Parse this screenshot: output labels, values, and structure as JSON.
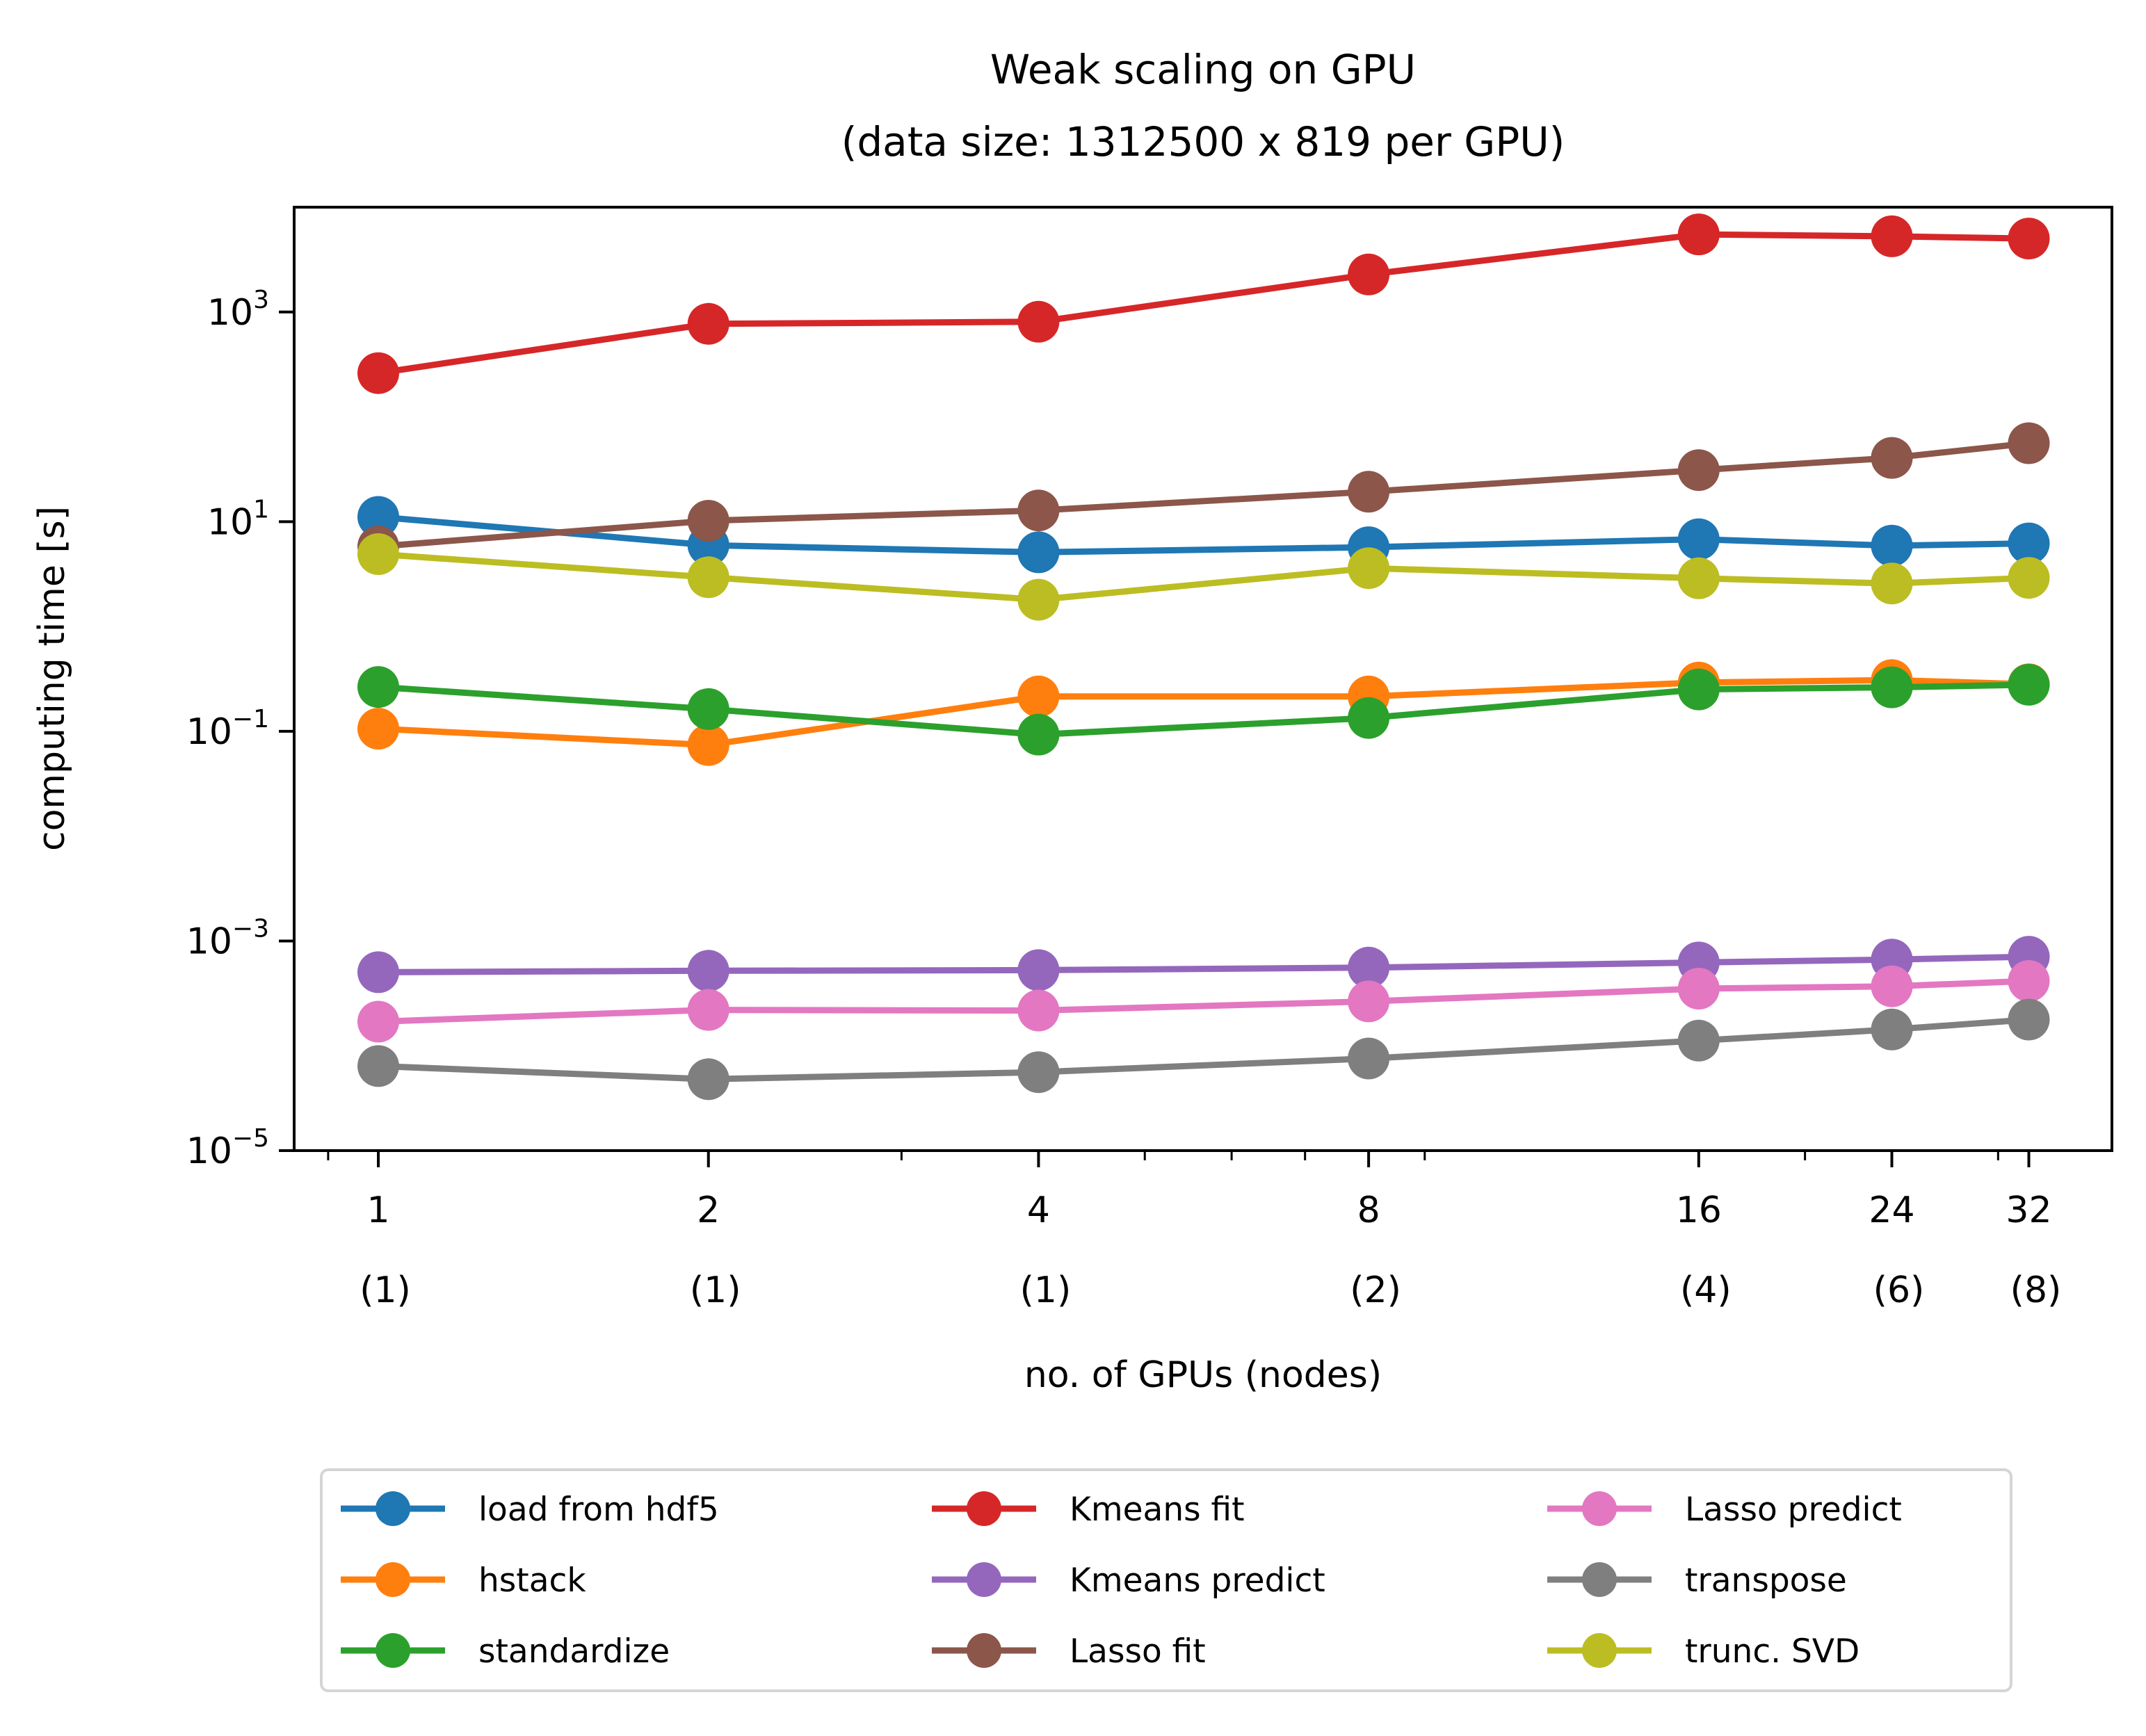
{
  "chart_data": {
    "type": "line",
    "title": "Weak scaling on GPU",
    "subtitle": "(data size: 1312500 x 819 per GPU)",
    "xlabel": "no. of GPUs (nodes)",
    "ylabel": "computing time [s]",
    "xscale": "log2",
    "yscale": "log10",
    "xlim": [
      0.838,
      38.1
    ],
    "ylim": [
      1e-05,
      10000.0
    ],
    "grid": false,
    "legend_position": "below-center",
    "legend_columns": 3,
    "x": [
      1,
      2,
      4,
      8,
      16,
      24,
      32
    ],
    "x_tick_labels": [
      {
        "gpus": "1",
        "nodes": "(1)"
      },
      {
        "gpus": "2",
        "nodes": "(1)"
      },
      {
        "gpus": "4",
        "nodes": "(1)"
      },
      {
        "gpus": "8",
        "nodes": "(2)"
      },
      {
        "gpus": "16",
        "nodes": "(4)"
      },
      {
        "gpus": "24",
        "nodes": "(6)"
      },
      {
        "gpus": "32",
        "nodes": "(8)"
      }
    ],
    "x_minor_ticks": [
      0.9,
      3,
      5,
      6,
      7,
      9,
      20,
      30
    ],
    "y_ticks": [
      {
        "value": 1000,
        "base": "10",
        "exp": "3"
      },
      {
        "value": 10,
        "base": "10",
        "exp": "1"
      },
      {
        "value": 0.1,
        "base": "10",
        "exp": "−1"
      },
      {
        "value": 0.001,
        "base": "10",
        "exp": "−3"
      },
      {
        "value": 1e-05,
        "base": "10",
        "exp": "−5"
      }
    ],
    "series": [
      {
        "name": "load from hdf5",
        "color": "#1f77b4",
        "values": [
          11.1,
          5.96,
          5.1,
          5.7,
          6.8,
          5.9,
          6.2
        ]
      },
      {
        "name": "hstack",
        "color": "#ff7f0e",
        "values": [
          0.106,
          0.074,
          0.215,
          0.215,
          0.292,
          0.308,
          0.281
        ]
      },
      {
        "name": "standardize",
        "color": "#2ca02c",
        "values": [
          0.265,
          0.163,
          0.093,
          0.134,
          0.251,
          0.263,
          0.278
        ]
      },
      {
        "name": "Kmeans fit",
        "color": "#d62728",
        "values": [
          261,
          771,
          807,
          2280,
          5500,
          5270,
          5020
        ]
      },
      {
        "name": "Kmeans predict",
        "color": "#9467bd",
        "values": [
          0.000503,
          0.00052,
          0.000527,
          0.000557,
          0.000623,
          0.000665,
          0.000708
        ]
      },
      {
        "name": "Lasso fit",
        "color": "#8c564b",
        "values": [
          5.8,
          10.2,
          12.8,
          19.3,
          31.0,
          40.6,
          56.0
        ]
      },
      {
        "name": "Lasso predict",
        "color": "#e377c2",
        "values": [
          0.00017,
          0.00022,
          0.000217,
          0.000265,
          0.000351,
          0.000369,
          0.000415
        ]
      },
      {
        "name": "transpose",
        "color": "#7f7f7f",
        "values": [
          6.4e-05,
          4.8e-05,
          5.6e-05,
          7.57e-05,
          0.000112,
          0.000143,
          0.000178
        ]
      },
      {
        "name": "trunc. SVD",
        "color": "#bcbd22",
        "values": [
          4.9,
          2.95,
          1.8,
          3.6,
          2.88,
          2.57,
          2.91
        ]
      }
    ]
  }
}
